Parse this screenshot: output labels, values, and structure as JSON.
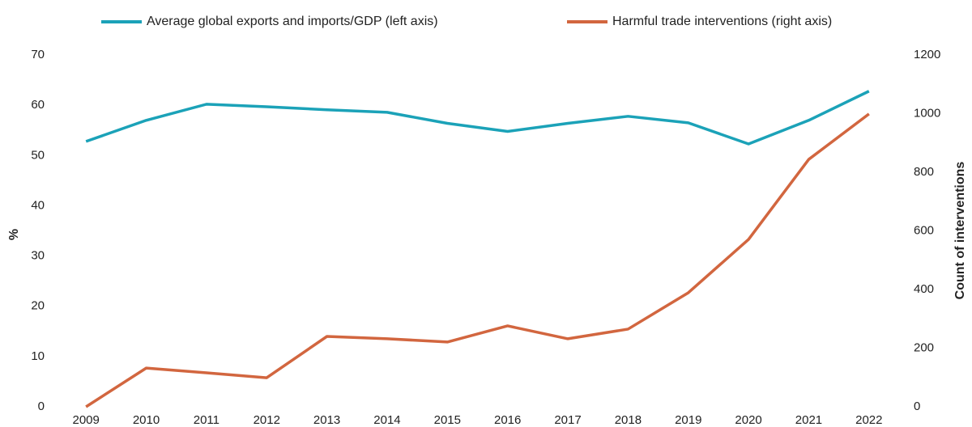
{
  "chart_data": {
    "type": "line",
    "categories": [
      "2009",
      "2010",
      "2011",
      "2012",
      "2013",
      "2014",
      "2015",
      "2016",
      "2017",
      "2018",
      "2019",
      "2020",
      "2021",
      "2022"
    ],
    "series": [
      {
        "name": "Average global exports and imports/GDP (left axis)",
        "color": "#1ba2b8",
        "values": [
          52.8,
          57.0,
          60.2,
          59.7,
          59.1,
          58.6,
          56.4,
          54.8,
          56.4,
          57.8,
          56.5,
          52.3,
          57.0,
          62.8
        ]
      },
      {
        "name": "Harmful trade interventions (right axis)",
        "color": "#d2663f",
        "axis": "y2",
        "values": [
          0,
          132,
          116,
          99,
          240,
          232,
          221,
          276,
          232,
          265,
          389,
          571,
          844,
          999
        ]
      }
    ],
    "y_label": "%",
    "y2_label": "Count of interventions",
    "ylim": [
      0,
      70
    ],
    "yticks": [
      0,
      10,
      20,
      30,
      40,
      50,
      60,
      70
    ],
    "y2lim": [
      0,
      1200
    ],
    "y2ticks": [
      0,
      200,
      400,
      600,
      800,
      1000,
      1200
    ],
    "legend": "top"
  }
}
